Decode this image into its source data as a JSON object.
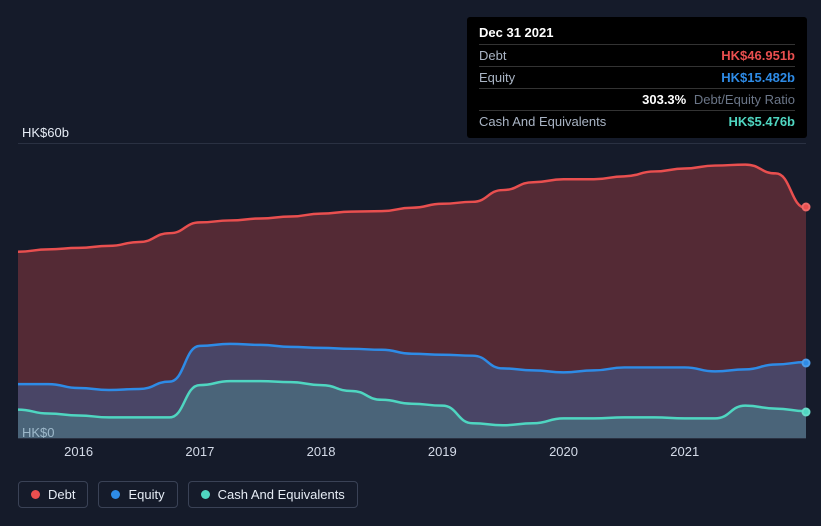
{
  "chart": {
    "type": "area",
    "background_color": "#151b2a",
    "grid_color": "#2a3142",
    "x_axis": {
      "ticks": [
        2016,
        2017,
        2018,
        2019,
        2020,
        2021
      ],
      "domain_min": 2015.5,
      "domain_max": 2022.0
    },
    "y_axis": {
      "min": 0,
      "max": 60,
      "tick_labels": [
        "HK$0",
        "HK$60b"
      ]
    },
    "series": [
      {
        "name": "Debt",
        "stroke": "#e94f4f",
        "fill": "#e94f4f",
        "fill_opacity": 0.3,
        "values": [
          [
            2015.5,
            38.0
          ],
          [
            2015.75,
            38.5
          ],
          [
            2016.0,
            38.8
          ],
          [
            2016.25,
            39.2
          ],
          [
            2016.5,
            40.0
          ],
          [
            2016.75,
            41.8
          ],
          [
            2017.0,
            44.0
          ],
          [
            2017.25,
            44.4
          ],
          [
            2017.5,
            44.8
          ],
          [
            2017.75,
            45.2
          ],
          [
            2018.0,
            45.8
          ],
          [
            2018.25,
            46.2
          ],
          [
            2018.5,
            46.3
          ],
          [
            2018.75,
            47.0
          ],
          [
            2019.0,
            47.8
          ],
          [
            2019.25,
            48.2
          ],
          [
            2019.5,
            50.6
          ],
          [
            2019.75,
            52.2
          ],
          [
            2020.0,
            52.8
          ],
          [
            2020.25,
            52.8
          ],
          [
            2020.5,
            53.4
          ],
          [
            2020.75,
            54.4
          ],
          [
            2021.0,
            55.0
          ],
          [
            2021.25,
            55.6
          ],
          [
            2021.5,
            55.8
          ],
          [
            2021.75,
            54.0
          ],
          [
            2022.0,
            46.95
          ]
        ]
      },
      {
        "name": "Equity",
        "stroke": "#2e8be6",
        "fill": "#2e8be6",
        "fill_opacity": 0.28,
        "values": [
          [
            2015.5,
            11.0
          ],
          [
            2015.75,
            11.0
          ],
          [
            2016.0,
            10.2
          ],
          [
            2016.25,
            9.8
          ],
          [
            2016.5,
            10.0
          ],
          [
            2016.75,
            11.5
          ],
          [
            2017.0,
            18.8
          ],
          [
            2017.25,
            19.2
          ],
          [
            2017.5,
            19.0
          ],
          [
            2017.75,
            18.6
          ],
          [
            2018.0,
            18.4
          ],
          [
            2018.25,
            18.2
          ],
          [
            2018.5,
            18.0
          ],
          [
            2018.75,
            17.2
          ],
          [
            2019.0,
            17.0
          ],
          [
            2019.25,
            16.8
          ],
          [
            2019.5,
            14.2
          ],
          [
            2019.75,
            13.8
          ],
          [
            2020.0,
            13.4
          ],
          [
            2020.25,
            13.8
          ],
          [
            2020.5,
            14.4
          ],
          [
            2020.75,
            14.4
          ],
          [
            2021.0,
            14.4
          ],
          [
            2021.25,
            13.6
          ],
          [
            2021.5,
            14.0
          ],
          [
            2021.75,
            15.0
          ],
          [
            2022.0,
            15.48
          ]
        ]
      },
      {
        "name": "Cash And Equivalents",
        "stroke": "#4fd6c1",
        "fill": "#4fd6c1",
        "fill_opacity": 0.22,
        "values": [
          [
            2015.5,
            5.8
          ],
          [
            2015.75,
            5.0
          ],
          [
            2016.0,
            4.6
          ],
          [
            2016.25,
            4.2
          ],
          [
            2016.5,
            4.2
          ],
          [
            2016.75,
            4.2
          ],
          [
            2017.0,
            10.8
          ],
          [
            2017.25,
            11.6
          ],
          [
            2017.5,
            11.6
          ],
          [
            2017.75,
            11.4
          ],
          [
            2018.0,
            10.8
          ],
          [
            2018.25,
            9.6
          ],
          [
            2018.5,
            7.8
          ],
          [
            2018.75,
            7.0
          ],
          [
            2019.0,
            6.6
          ],
          [
            2019.25,
            3.0
          ],
          [
            2019.5,
            2.6
          ],
          [
            2019.75,
            3.0
          ],
          [
            2020.0,
            4.0
          ],
          [
            2020.25,
            4.0
          ],
          [
            2020.5,
            4.2
          ],
          [
            2020.75,
            4.2
          ],
          [
            2021.0,
            4.0
          ],
          [
            2021.25,
            4.0
          ],
          [
            2021.5,
            6.6
          ],
          [
            2021.75,
            6.0
          ],
          [
            2022.0,
            5.48
          ]
        ]
      }
    ],
    "end_markers": [
      {
        "color": "#e94f4f",
        "x": 2022.0,
        "y": 46.95
      },
      {
        "color": "#2e8be6",
        "x": 2022.0,
        "y": 15.48
      },
      {
        "color": "#4fd6c1",
        "x": 2022.0,
        "y": 5.48
      }
    ]
  },
  "tooltip": {
    "date": "Dec 31 2021",
    "rows": [
      {
        "label": "Debt",
        "value": "HK$46.951b",
        "color": "#e94f4f"
      },
      {
        "label": "Equity",
        "value": "HK$15.482b",
        "color": "#2e8be6"
      },
      {
        "label": "",
        "ratio_value": "303.3%",
        "ratio_label": "Debt/Equity Ratio"
      },
      {
        "label": "Cash And Equivalents",
        "value": "HK$5.476b",
        "color": "#4fd6c1"
      }
    ]
  },
  "legend": {
    "items": [
      {
        "label": "Debt",
        "color": "#e94f4f"
      },
      {
        "label": "Equity",
        "color": "#2e8be6"
      },
      {
        "label": "Cash And Equivalents",
        "color": "#4fd6c1"
      }
    ]
  }
}
